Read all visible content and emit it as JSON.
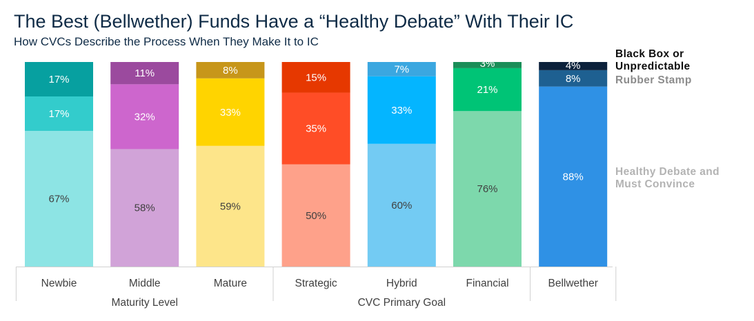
{
  "title": "The Best (Bellwether) Funds Have a “Healthy Debate” With Their IC",
  "subtitle": "How CVCs Describe the Process When They Make It to IC",
  "legend": {
    "black_box": "Black Box or Unpredictable",
    "rubber_stamp": "Rubber Stamp",
    "healthy_debate": "Healthy Debate and Must Convince"
  },
  "chart_data": {
    "type": "bar",
    "stacked": true,
    "title": "The Best (Bellwether) Funds Have a “Healthy Debate” With Their IC",
    "subtitle": "How CVCs Describe the Process When They Make It to IC",
    "categories": [
      "Newbie",
      "Middle",
      "Mature",
      "Strategic",
      "Hybrid",
      "Financial",
      "Bellwether"
    ],
    "groups": [
      {
        "label": "Maturity Level",
        "categories": [
          "Newbie",
          "Middle",
          "Mature"
        ]
      },
      {
        "label": "CVC Primary Goal",
        "categories": [
          "Strategic",
          "Hybrid",
          "Financial"
        ]
      }
    ],
    "series": [
      {
        "name": "Healthy Debate and Must Convince",
        "values": [
          67,
          58,
          59,
          50,
          60,
          76,
          88
        ]
      },
      {
        "name": "Rubber Stamp",
        "values": [
          17,
          32,
          33,
          35,
          33,
          21,
          8
        ]
      },
      {
        "name": "Black Box or Unpredictable",
        "values": [
          17,
          11,
          8,
          15,
          7,
          3,
          4
        ]
      }
    ],
    "labels": [
      [
        "67%",
        "17%",
        "17%"
      ],
      [
        "58%",
        "32%",
        "11%"
      ],
      [
        "59%",
        "33%",
        "8%"
      ],
      [
        "50%",
        "35%",
        "15%"
      ],
      [
        "60%",
        "33%",
        "7%"
      ],
      [
        "76%",
        "21%",
        "3%"
      ],
      [
        "88%",
        "8%",
        "4%"
      ]
    ],
    "colors": [
      [
        "#8de4e4",
        "#33cccc",
        "#07a0a0"
      ],
      [
        "#d1a3d8",
        "#cd66cd",
        "#9b4a9e"
      ],
      [
        "#fde58a",
        "#ffd400",
        "#c7961a"
      ],
      [
        "#fea18a",
        "#ff4d26",
        "#e63800"
      ],
      [
        "#73cbf3",
        "#04b5ff",
        "#3ba7e0"
      ],
      [
        "#7dd8ac",
        "#00c476",
        "#1b8d58"
      ],
      [
        "#2f91e5",
        "#1e6091",
        "#0c213b"
      ]
    ],
    "label_colors": [
      [
        "#404040",
        "#ffffff",
        "#ffffff"
      ],
      [
        "#404040",
        "#ffffff",
        "#ffffff"
      ],
      [
        "#404040",
        "#ffffff",
        "#ffffff"
      ],
      [
        "#404040",
        "#ffffff",
        "#ffffff"
      ],
      [
        "#404040",
        "#ffffff",
        "#ffffff"
      ],
      [
        "#404040",
        "#ffffff",
        "#ffffff"
      ],
      [
        "#ffffff",
        "#ffffff",
        "#ffffff"
      ]
    ],
    "ylim": [
      0,
      100
    ],
    "xlabel": "",
    "ylabel": "",
    "grid": false,
    "legend_position": "right"
  }
}
